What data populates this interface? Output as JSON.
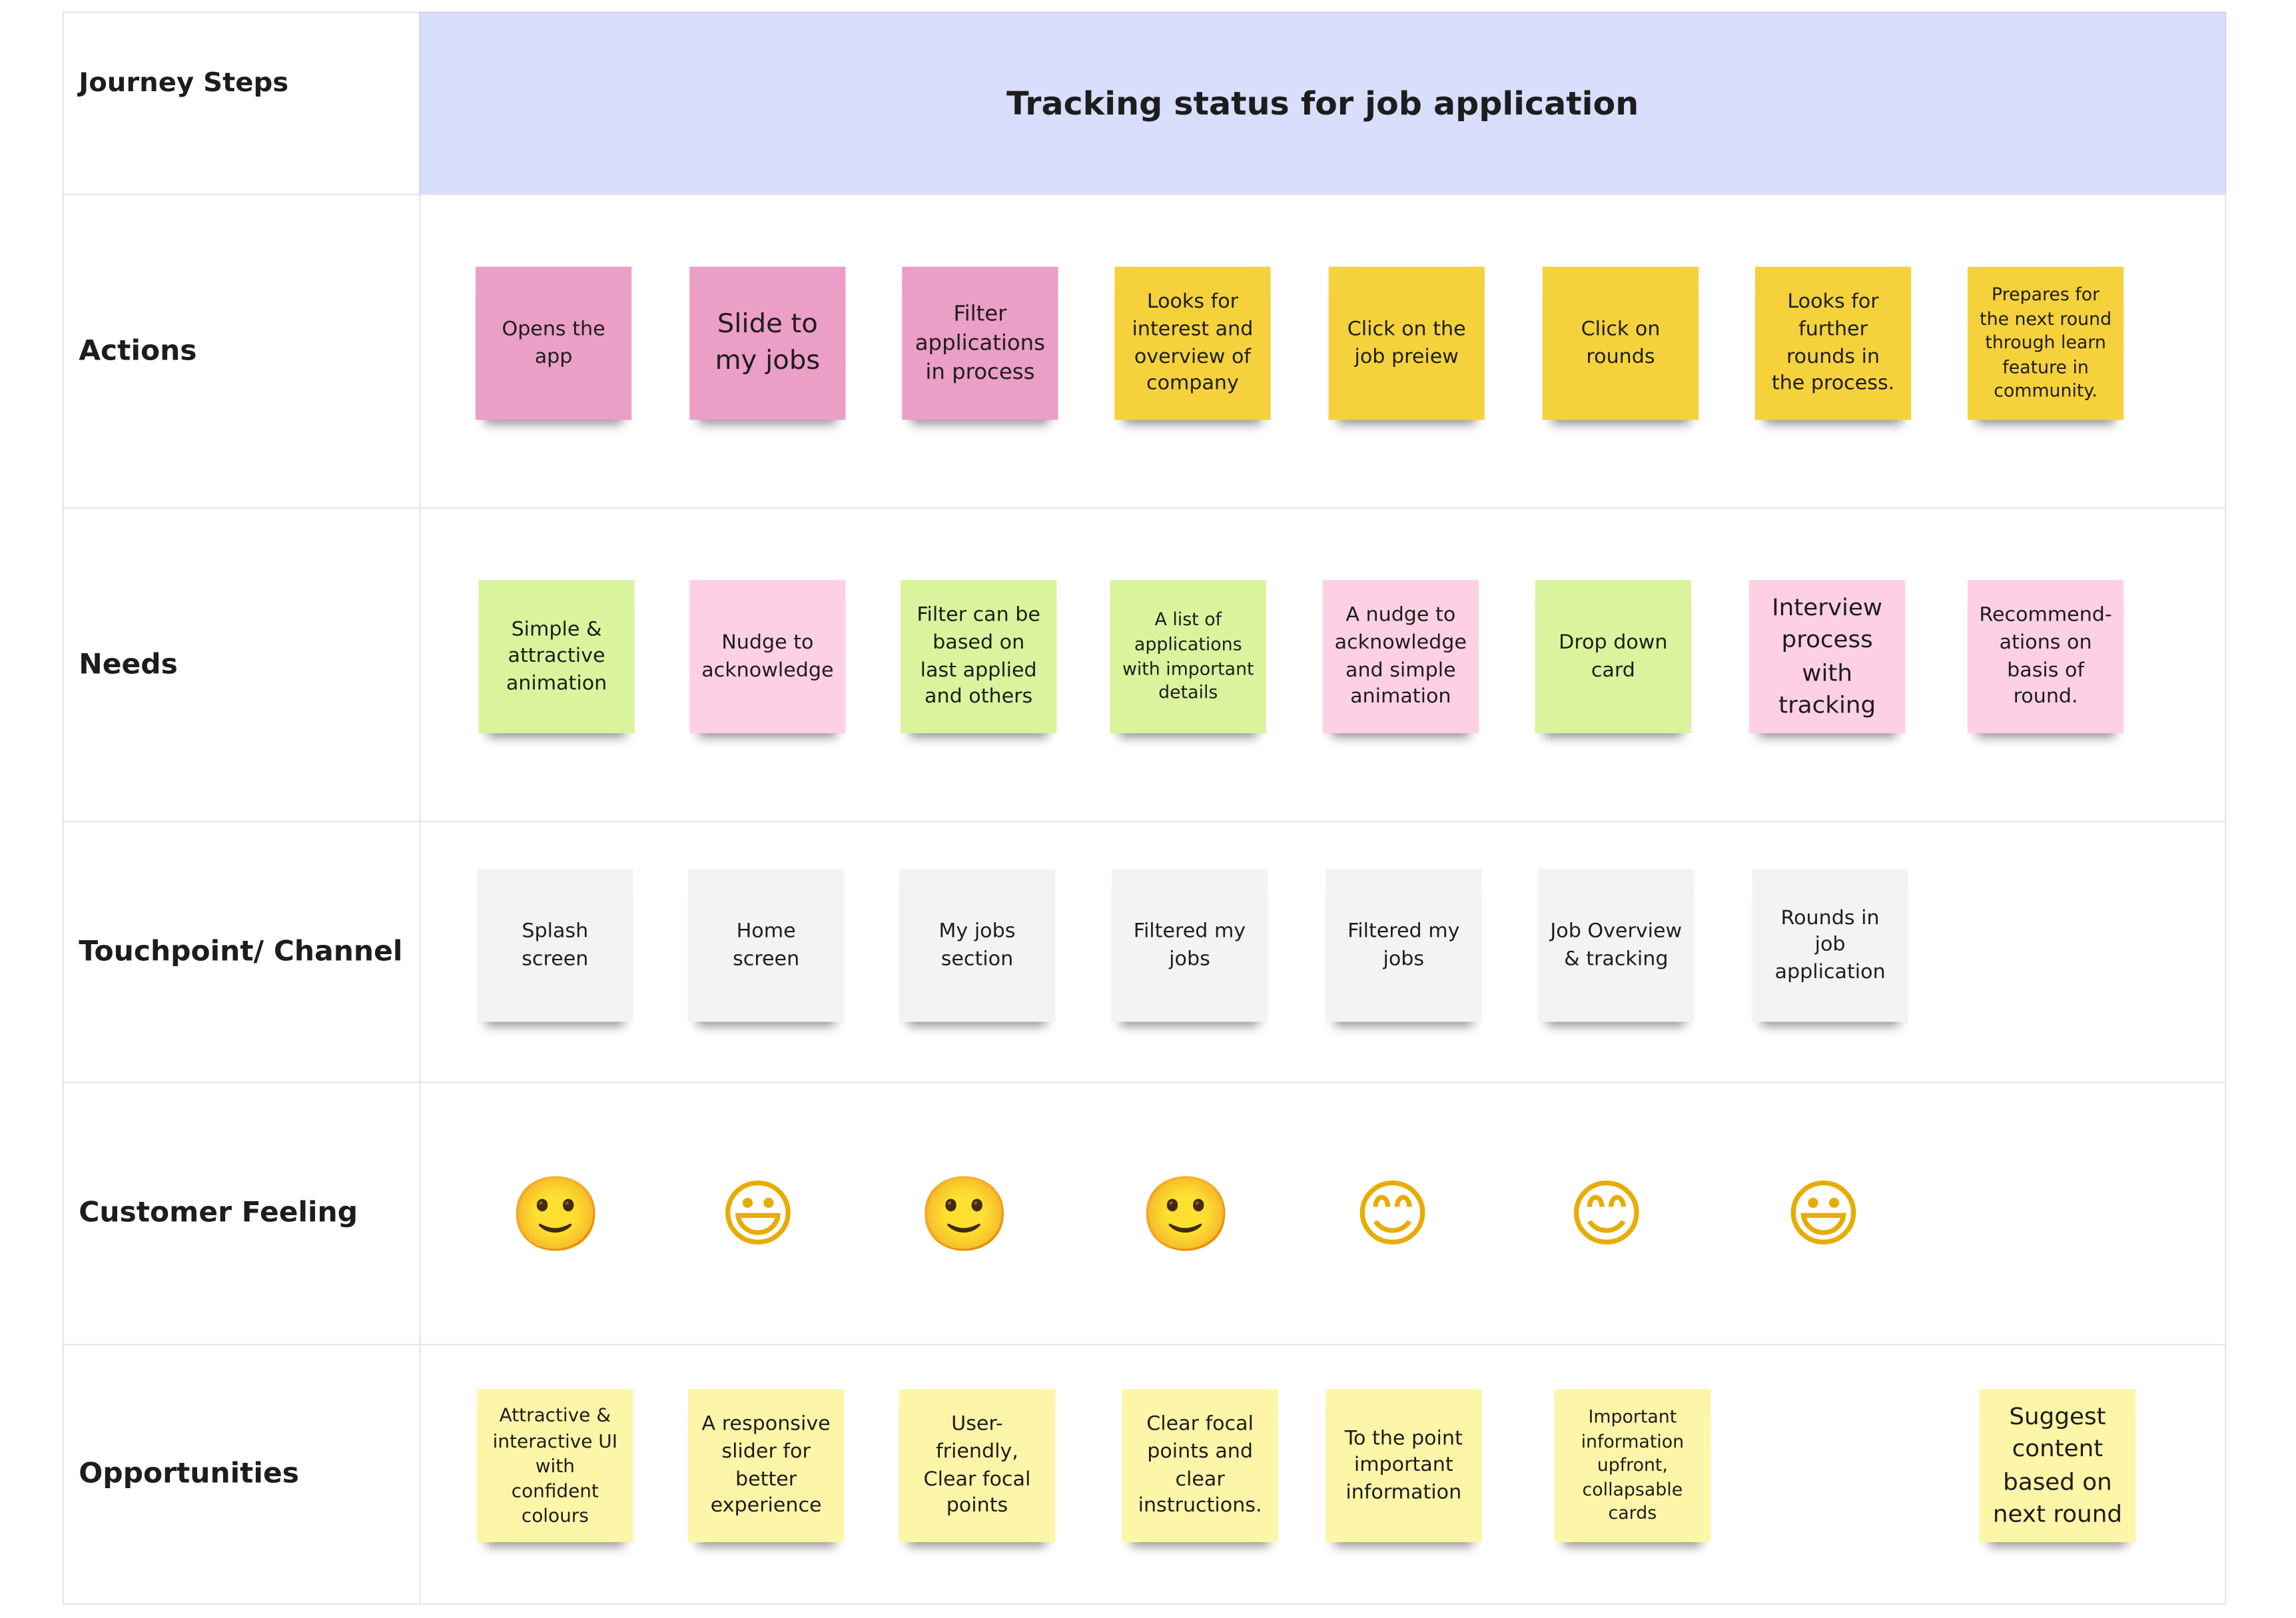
{
  "header": {
    "label": "Journey Steps",
    "title": "Tracking status for job application"
  },
  "rows": [
    {
      "label": "Actions",
      "notes": [
        {
          "text": "Opens the app",
          "color": "#eb9ec6"
        },
        {
          "text": "Slide to my jobs",
          "color": "#eb9ec6"
        },
        {
          "text": "Filter applications in process",
          "color": "#eb9ec6"
        },
        {
          "text": "Looks for interest and overview of company",
          "color": "#f5d23c"
        },
        {
          "text": "Click on the job preiew",
          "color": "#f5d23c"
        },
        {
          "text": "Click on rounds",
          "color": "#f5d23c"
        },
        {
          "text": "Looks for further rounds in the process.",
          "color": "#f5d23c"
        },
        {
          "text": "Prepares for the next round through learn feature in community.",
          "color": "#f5d23c"
        }
      ]
    },
    {
      "label": "Needs",
      "notes": [
        {
          "text": "Simple & attractive animation",
          "color": "#d9f49c"
        },
        {
          "text": "Nudge to acknowledge",
          "color": "#fdd1e3"
        },
        {
          "text": "Filter can be based on last applied and others",
          "color": "#d9f49c"
        },
        {
          "text": "A list of applications with important details",
          "color": "#d9f49c"
        },
        {
          "text": "A nudge to acknowledge and simple animation",
          "color": "#fdd1e3"
        },
        {
          "text": "Drop down card",
          "color": "#d9f49c"
        },
        {
          "text": "Interview process with tracking",
          "color": "#fdd1e3"
        },
        {
          "text": "Recommend-ations on basis of round.",
          "color": "#fdd1e3"
        }
      ]
    },
    {
      "label": "Touchpoint/ Channel",
      "notes": [
        {
          "text": "Splash screen",
          "color": "#f3f3f5"
        },
        {
          "text": "Home screen",
          "color": "#f3f3f5"
        },
        {
          "text": "My jobs section",
          "color": "#f3f3f5"
        },
        {
          "text": "Filtered my jobs",
          "color": "#f3f3f5"
        },
        {
          "text": "Filtered my jobs",
          "color": "#f3f3f5"
        },
        {
          "text": "Job Overview & tracking",
          "color": "#f3f3f5"
        },
        {
          "text": "Rounds in job application",
          "color": "#f3f3f5"
        }
      ]
    },
    {
      "label": "Customer Feeling",
      "faces": [
        "🙂",
        "😃",
        "🙂",
        "🙂",
        "😊",
        "😊",
        "😃"
      ]
    },
    {
      "label": "Opportunities",
      "notes": [
        {
          "text": "Attractive & interactive UI with confident colours",
          "color": "#fdf5a8"
        },
        {
          "text": "A responsive slider for better experience",
          "color": "#fdf5a8"
        },
        {
          "text": "User-friendly, Clear  focal points",
          "color": "#fdf5a8"
        },
        {
          "text": "Clear focal points and clear instructions.",
          "color": "#fdf5a8"
        },
        {
          "text": "To the point important information",
          "color": "#fdf5a8"
        },
        {
          "text": "Important information upfront, collapsable cards",
          "color": "#fdf5a8"
        },
        null,
        {
          "text": "Suggest content based on next round",
          "color": "#fdf5a8"
        }
      ]
    }
  ]
}
